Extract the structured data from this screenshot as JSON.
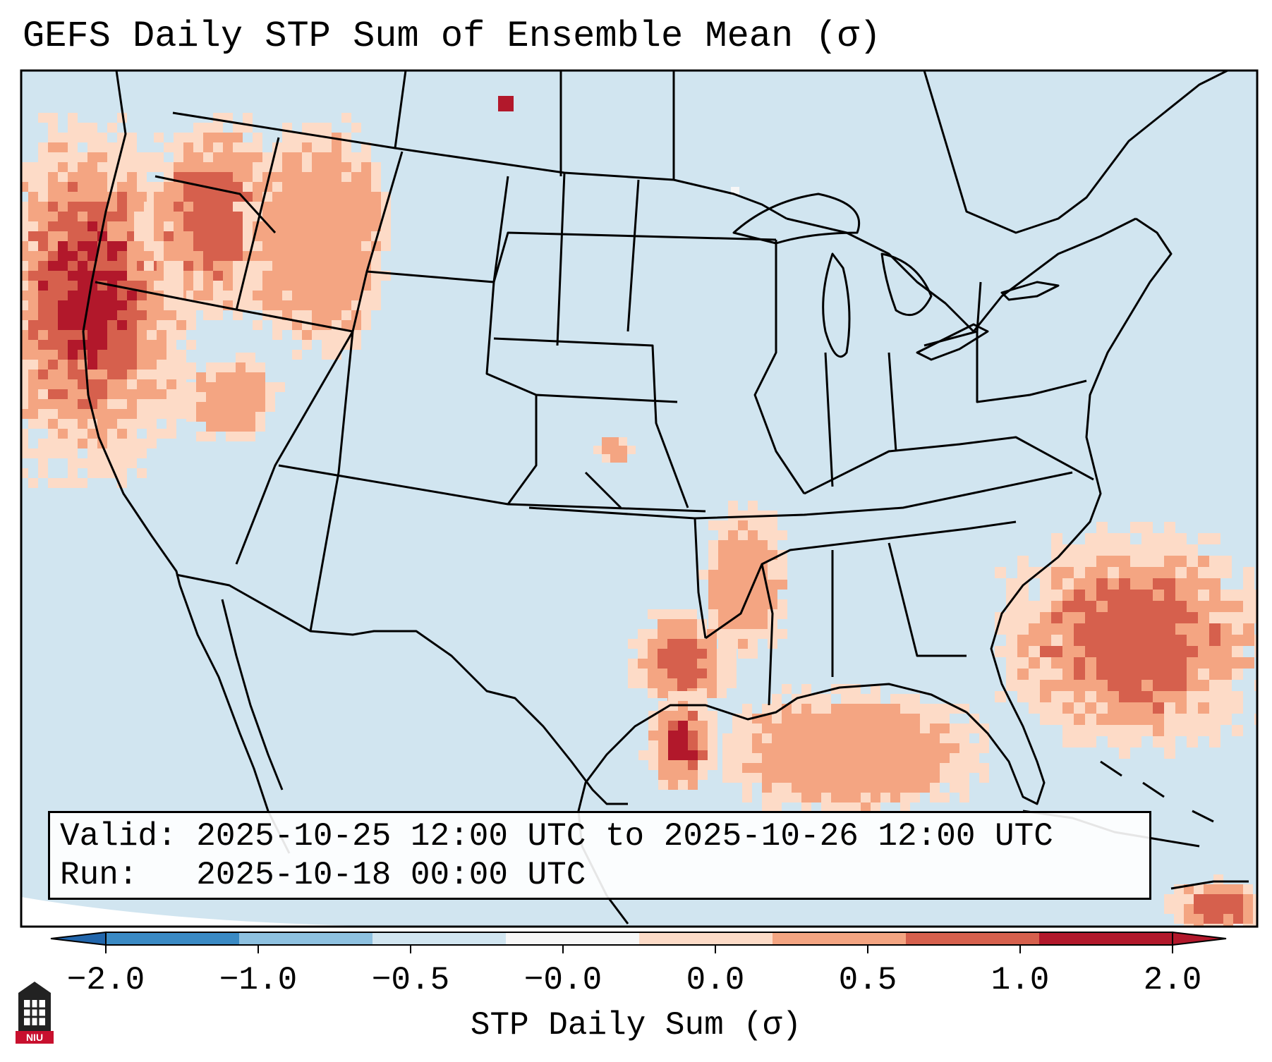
{
  "title": "GEFS Daily STP Sum of Ensemble Mean (σ)",
  "info": {
    "valid_label": "Valid:",
    "valid_text": "2025-10-25 12:00 UTC to 2025-10-26 12:00 UTC",
    "run_label": "Run:",
    "run_text": "2025-10-18 00:00 UTC"
  },
  "colorbar": {
    "label": "STP Daily Sum (σ)",
    "ticks": [
      "−2.0",
      "−1.0",
      "−0.5",
      "−0.0",
      "0.0",
      "0.5",
      "1.0",
      "2.0"
    ],
    "colors": [
      "#3a8ac4",
      "#8ec1e0",
      "#d1e5f0",
      "#f7f7f7",
      "#fddbc7",
      "#f4a582",
      "#d6604d",
      "#b2182b"
    ]
  },
  "map": {
    "background_color": "#d1e5f0",
    "regions": [
      "Northwest (Oregon/Washington/N. California coast)",
      "Idaho/Montana border",
      "Kansas",
      "Arkansas/Louisiana",
      "Texas Gulf Coast",
      "Gulf of Mexico",
      "Western Atlantic",
      "Cuba/Caribbean"
    ]
  },
  "logo": {
    "text": "NIU"
  }
}
